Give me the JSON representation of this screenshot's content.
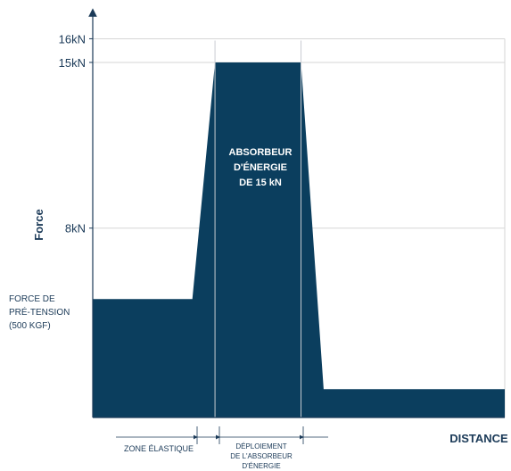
{
  "chart_data": {
    "type": "area",
    "xlabel": "DISTANCE",
    "ylabel": "Force",
    "y_ticks": [
      {
        "value": 16,
        "label": "16kN"
      },
      {
        "value": 15,
        "label": "15kN"
      },
      {
        "value": 8,
        "label": "8kN"
      }
    ],
    "ylim": [
      0,
      16.5
    ],
    "grid": true,
    "series": [
      {
        "x": [
          0,
          0,
          2.2,
          2.7,
          4.6,
          5.1,
          9.1,
          9.1
        ],
        "y": [
          0,
          5,
          5,
          15,
          15,
          1.2,
          1.2,
          0
        ]
      }
    ],
    "xlim": [
      0,
      9.1
    ],
    "vertical_markers": [
      2.7,
      4.6
    ],
    "annotations": {
      "pretension": [
        "FORCE DE",
        "PRÉ-TENSION",
        "(500 KGF)"
      ],
      "absorber": [
        "ABSORBEUR",
        "D'ÉNERGIE",
        "DE 15  kN"
      ],
      "elastic_zone": "ZONE ÉLASTIQUE",
      "deployment": [
        "DÉPLOIEMENT",
        "DE L'ABSORBEUR",
        "D'ÉNERGIE"
      ]
    },
    "colors": {
      "fill": "#0b3e5e",
      "text": "#1b3a58",
      "grid": "#d6d6d6"
    }
  }
}
